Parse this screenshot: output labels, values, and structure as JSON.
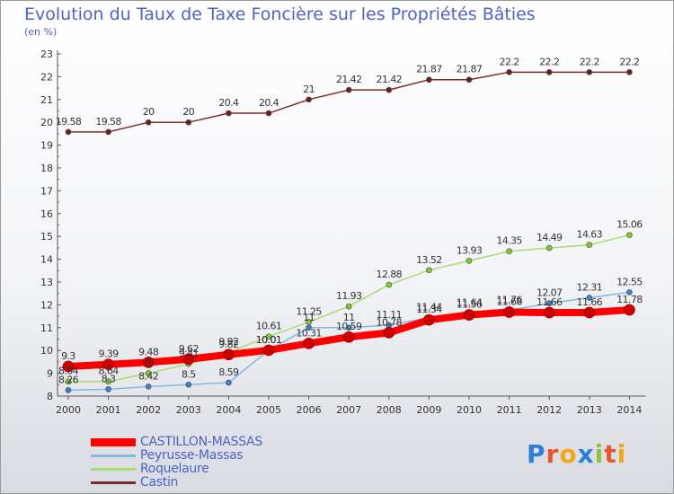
{
  "header": {
    "title": "Evolution du Taux de Taxe Foncière sur les Propriétés Bâties",
    "subtitle": "(en %)"
  },
  "logo": {
    "text": "Proxiti",
    "letter_colors": [
      "#2f7fd6",
      "#e8542b",
      "#f2a516",
      "#2f7fd6",
      "#8fc53a",
      "#e8542b",
      "#f2a516"
    ]
  },
  "chart_data": {
    "type": "line",
    "title": "Evolution du Taux de Taxe Foncière sur les Propriétés Bâties",
    "ylabel": "(en %)",
    "xlabel": "",
    "categories": [
      "2000",
      "2001",
      "2002",
      "2003",
      "2004",
      "2005",
      "2006",
      "2007",
      "2008",
      "2009",
      "2010",
      "2011",
      "2012",
      "2013",
      "2014"
    ],
    "ylim": [
      8,
      23
    ],
    "yticks": [
      "8",
      "9",
      "10",
      "11",
      "12",
      "13",
      "14",
      "15",
      "16",
      "17",
      "18",
      "19",
      "20",
      "21",
      "22",
      "23"
    ],
    "grid": false,
    "legend_position": "bottom-left",
    "series": [
      {
        "name": "CASTILLON-MASSAS",
        "color": "#ff0000",
        "marker_color": "#cc0000",
        "values": [
          9.3,
          9.39,
          9.48,
          9.62,
          9.82,
          10.01,
          10.31,
          10.59,
          10.78,
          11.34,
          11.56,
          11.68,
          11.66,
          11.66,
          11.78
        ],
        "labels": [
          "9.3",
          "9.39",
          "9.48",
          "9.62",
          "9.82",
          "10.01",
          "10.31",
          "10.59",
          "10.78",
          "11.34",
          "11.56",
          "11.68",
          "11.66",
          "11.66",
          "11.78"
        ]
      },
      {
        "name": "Peyrusse-Massas",
        "color": "#86b8dd",
        "marker_color": "#3b82c9",
        "values": [
          8.26,
          8.3,
          8.42,
          8.5,
          8.59,
          10.01,
          11.0,
          11.0,
          11.11,
          11.44,
          11.64,
          11.76,
          12.07,
          12.31,
          12.55
        ],
        "labels": [
          "8.26",
          "8.3",
          "8.42",
          "8.5",
          "8.59",
          "10.01",
          "11",
          "11",
          "11.11",
          "11.44",
          "11.64",
          "11.76",
          "12.07",
          "12.31",
          "12.55"
        ]
      },
      {
        "name": "Roquelaure",
        "color": "#a9dd70",
        "marker_color": "#7fcd2a",
        "values": [
          8.64,
          8.64,
          9.0,
          9.41,
          9.92,
          10.61,
          11.25,
          11.93,
          12.88,
          13.52,
          13.93,
          14.35,
          14.49,
          14.63,
          15.06
        ],
        "labels": [
          "8.64",
          "8.64",
          "9",
          "9.41",
          "9.92",
          "10.61",
          "11.25",
          "11.93",
          "12.88",
          "13.52",
          "13.93",
          "14.35",
          "14.49",
          "14.63",
          "15.06"
        ]
      },
      {
        "name": "Castin",
        "color": "#7a2c2c",
        "marker_color": "#6b1e1e",
        "values": [
          19.58,
          19.58,
          20.0,
          20.0,
          20.4,
          20.4,
          21.0,
          21.42,
          21.42,
          21.87,
          21.87,
          22.2,
          22.2,
          22.2,
          22.2
        ],
        "labels": [
          "19.58",
          "19.58",
          "20",
          "20",
          "20.4",
          "20.4",
          "21",
          "21.42",
          "21.42",
          "21.87",
          "21.87",
          "22.2",
          "22.2",
          "22.2",
          "22.2"
        ]
      }
    ]
  }
}
